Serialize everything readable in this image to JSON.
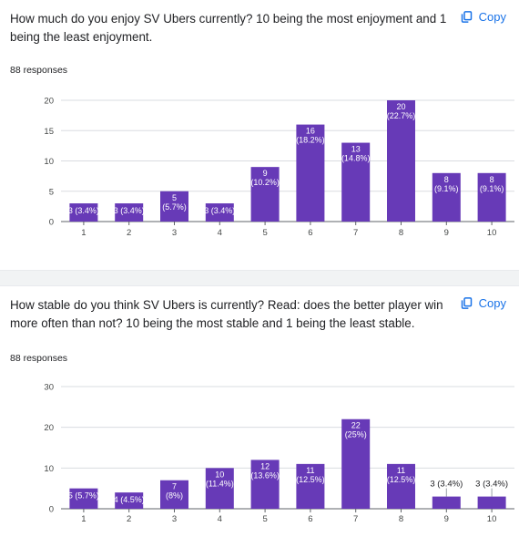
{
  "copy_label": "Copy",
  "icons": {
    "copy": "copy-icon"
  },
  "colors": {
    "bar": "#673ab7",
    "accent": "#1a73e8",
    "divider": "#f1f3f4"
  },
  "questions": [
    {
      "title": "How much do you enjoy SV Ubers currently? 10 being the most enjoyment and 1 being the least enjoyment.",
      "responses": "88 responses"
    },
    {
      "title": "How stable do you think SV Ubers is currently? Read: does the better player win more often than not? 10 being the most stable and 1 being the least stable.",
      "responses": "88 responses"
    }
  ],
  "chart_data": [
    {
      "type": "bar",
      "categories": [
        "1",
        "2",
        "3",
        "4",
        "5",
        "6",
        "7",
        "8",
        "9",
        "10"
      ],
      "values": [
        3,
        3,
        5,
        3,
        9,
        16,
        13,
        20,
        8,
        8
      ],
      "labels": [
        "3 (3.4%)",
        "3 (3.4%)",
        "5 (5.7%)",
        "3 (3.4%)",
        "9 (10.2%)",
        "16 (18.2%)",
        "13 (14.8%)",
        "20 (22.7%)",
        "8 (9.1%)",
        "8 (9.1%)"
      ],
      "yticks": [
        0,
        5,
        10,
        15,
        20
      ],
      "ylim": [
        0,
        20
      ],
      "grid": true
    },
    {
      "type": "bar",
      "categories": [
        "1",
        "2",
        "3",
        "4",
        "5",
        "6",
        "7",
        "8",
        "9",
        "10"
      ],
      "values": [
        5,
        4,
        7,
        10,
        12,
        11,
        22,
        11,
        3,
        3
      ],
      "labels": [
        "5 (5.7%)",
        "4 (4.5%)",
        "7 (8%)",
        "10 (11.4%)",
        "12 (13.6%)",
        "11 (12.5%)",
        "22 (25%)",
        "11 (12.5%)",
        "3 (3.4%)",
        "3 (3.4%)"
      ],
      "yticks": [
        0,
        10,
        20,
        30
      ],
      "ylim": [
        0,
        30
      ],
      "grid": true
    }
  ]
}
